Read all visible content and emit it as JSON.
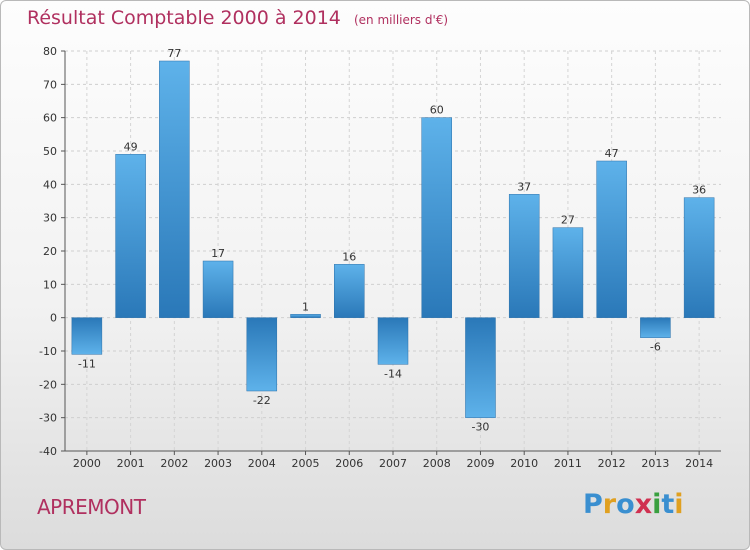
{
  "header": {
    "title": "Résultat Comptable 2000 à 2014",
    "subtitle": "(en milliers d'€)"
  },
  "footer": {
    "commune": "APREMONT",
    "logo": "Proxiti"
  },
  "colors": {
    "title": "#b0305f",
    "bar_light": "#5aaee8",
    "bar_dark": "#2a78b8",
    "grid": "#c8c8c8",
    "logo": [
      "#3a8fd0",
      "#e0a020",
      "#3a8fd0",
      "#d03050",
      "#3aa040",
      "#3a8fd0",
      "#e0a020"
    ]
  },
  "chart_data": {
    "type": "bar",
    "title": "Résultat Comptable 2000 à 2014",
    "subtitle": "(en milliers d'€)",
    "xlabel": "",
    "ylabel": "",
    "categories": [
      "2000",
      "2001",
      "2002",
      "2003",
      "2004",
      "2005",
      "2006",
      "2007",
      "2008",
      "2009",
      "2010",
      "2011",
      "2012",
      "2013",
      "2014"
    ],
    "values": [
      -11,
      49,
      77,
      17,
      -22,
      1,
      16,
      -14,
      60,
      -30,
      37,
      27,
      47,
      -6,
      36
    ],
    "ylim": [
      -40,
      80
    ],
    "yticks": [
      -40,
      -30,
      -20,
      -10,
      0,
      10,
      20,
      30,
      40,
      50,
      60,
      70,
      80
    ],
    "grid": true,
    "legend": "none"
  }
}
